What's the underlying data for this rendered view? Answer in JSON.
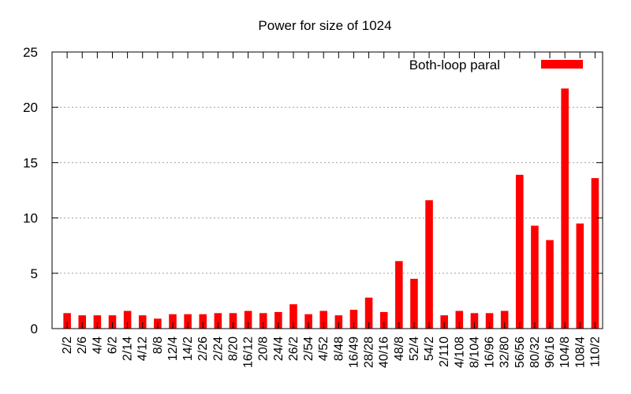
{
  "chart_data": {
    "type": "bar",
    "title": "Power for size of 1024",
    "xlabel": "",
    "ylabel": "",
    "ylim": [
      0,
      25
    ],
    "yticks": [
      0,
      5,
      10,
      15,
      20,
      25
    ],
    "grid": true,
    "legend_position": "top-right",
    "categories": [
      "2/2",
      "2/6",
      "4/4",
      "6/2",
      "2/14",
      "4/12",
      "8/8",
      "12/4",
      "14/2",
      "2/26",
      "2/24",
      "8/20",
      "16/12",
      "20/8",
      "24/4",
      "26/2",
      "2/54",
      "4/52",
      "8/48",
      "16/49",
      "28/28",
      "40/16",
      "48/8",
      "52/4",
      "54/2",
      "2/110",
      "4/108",
      "8/104",
      "16/96",
      "32/80",
      "56/56",
      "80/32",
      "96/16",
      "104/8",
      "108/4",
      "110/2"
    ],
    "series": [
      {
        "name": "Both-loop paral",
        "color": "#ff0000",
        "values": [
          1.4,
          1.2,
          1.2,
          1.2,
          1.6,
          1.2,
          0.9,
          1.3,
          1.3,
          1.3,
          1.4,
          1.4,
          1.6,
          1.4,
          1.5,
          2.2,
          1.3,
          1.6,
          1.2,
          1.7,
          2.8,
          1.5,
          6.1,
          4.5,
          11.6,
          1.2,
          1.6,
          1.4,
          1.4,
          1.6,
          13.9,
          9.3,
          8.0,
          21.7,
          9.5,
          13.6
        ]
      }
    ]
  }
}
